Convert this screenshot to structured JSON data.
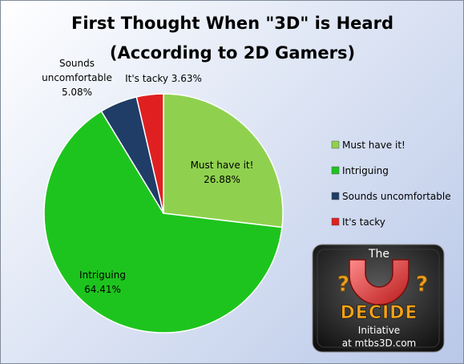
{
  "chart_data": {
    "type": "pie",
    "title_lines": [
      "First Thought When \"3D\" is Heard",
      "(According to 2D Gamers)"
    ],
    "slices": [
      {
        "name": "Must have it!",
        "value": 26.88,
        "label_lines": [
          "Must have it!",
          "26.88%"
        ],
        "color": "#8fd14f"
      },
      {
        "name": "Intriguing",
        "value": 64.41,
        "label_lines": [
          "Intriguing",
          "64.41%"
        ],
        "color": "#1ec41e"
      },
      {
        "name": "Sounds uncomfortable",
        "value": 5.08,
        "label_lines": [
          "Sounds",
          "uncomfortable",
          "5.08%"
        ],
        "color": "#1f3d66"
      },
      {
        "name": "It's tacky",
        "value": 3.63,
        "label_lines": [
          "It's tacky 3.63%"
        ],
        "color": "#e02020"
      }
    ],
    "legend_placement": "right"
  },
  "logo": {
    "top_text": "The",
    "brand_text": "DECIDE",
    "subtitle": "Initiative",
    "website": "at mtbs3D.com"
  }
}
